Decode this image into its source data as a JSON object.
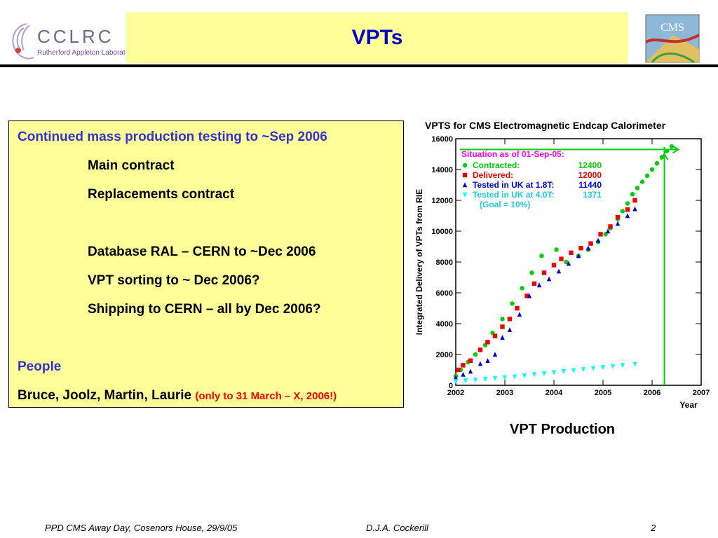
{
  "header": {
    "title": "VPTs",
    "cclrc_logo_text": "CCLRC",
    "cclrc_logo_subtext": "Rutherford Appleton Laboratory",
    "cms_logo_text": "CMS"
  },
  "textbox": {
    "lines": [
      "Continued mass production testing to ~Sep 2006",
      "Main contract",
      "Replacements contract",
      "Database  RAL – CERN to ~Dec 2006",
      "VPT sorting to ~ Dec 2006?",
      "Shipping to CERN – all by Dec 2006?",
      "People",
      "Bruce, Joolz, Martin, Laurie"
    ],
    "note": "(only to 31 March – X, 2006!)"
  },
  "caption": "VPT Production",
  "footer": {
    "left": "PPD CMS Away Day, Cosenors House, 29/9/05",
    "center": "D.J.A. Cockerill",
    "page": "2"
  },
  "chart_data": {
    "type": "scatter",
    "title": "VPTS for CMS Electromagnetic Endcap Calorimeter",
    "xlabel": "Year",
    "ylabel": "Integrated Delivery of VPTs from RIE",
    "xlim": [
      2002,
      2007
    ],
    "ylim": [
      0,
      16000
    ],
    "x_ticks": [
      "2002",
      "2003",
      "2004",
      "2005",
      "2006",
      "2007"
    ],
    "y_ticks": [
      "0",
      "2000",
      "4000",
      "6000",
      "8000",
      "10000",
      "12000",
      "14000",
      "16000"
    ],
    "legend_title": "Situation as of 01-Sep-05:",
    "legend_position": "top-left",
    "legend_goal": "(Goal =  10%)",
    "colors": {
      "contracted": "#00cc00",
      "delivered": "#ee0000",
      "tested18": "#0000cc",
      "tested40": "#00ffff",
      "title": "#ff00ff",
      "arrow": "#00cc00"
    },
    "series": [
      {
        "name": "Contracted:",
        "total": "12400",
        "marker": "circle",
        "points": [
          [
            2002.0,
            600
          ],
          [
            2002.1,
            1000
          ],
          [
            2002.25,
            1500
          ],
          [
            2002.4,
            2000
          ],
          [
            2002.6,
            2600
          ],
          [
            2002.75,
            3400
          ],
          [
            2002.95,
            4300
          ],
          [
            2003.15,
            5300
          ],
          [
            2003.35,
            6300
          ],
          [
            2003.55,
            7300
          ],
          [
            2003.75,
            8400
          ],
          [
            2004.05,
            8800
          ],
          [
            2004.25,
            8000
          ],
          [
            2004.5,
            8400
          ],
          [
            2004.7,
            8800
          ],
          [
            2004.9,
            9300
          ],
          [
            2005.05,
            9800
          ],
          [
            2005.15,
            10200
          ],
          [
            2005.3,
            10800
          ],
          [
            2005.4,
            11300
          ],
          [
            2005.5,
            11800
          ],
          [
            2005.6,
            12400
          ],
          [
            2005.7,
            12800
          ],
          [
            2005.8,
            13200
          ],
          [
            2005.9,
            13600
          ],
          [
            2006.0,
            14000
          ],
          [
            2006.1,
            14400
          ],
          [
            2006.2,
            14800
          ],
          [
            2006.3,
            15200
          ],
          [
            2006.4,
            15500
          ]
        ]
      },
      {
        "name": "Delivered:",
        "total": "12000",
        "marker": "square",
        "points": [
          [
            2002.05,
            1000
          ],
          [
            2002.15,
            1300
          ],
          [
            2002.3,
            1600
          ],
          [
            2002.5,
            2300
          ],
          [
            2002.65,
            2800
          ],
          [
            2002.8,
            3200
          ],
          [
            2002.95,
            3800
          ],
          [
            2003.1,
            4300
          ],
          [
            2003.25,
            5000
          ],
          [
            2003.45,
            5800
          ],
          [
            2003.6,
            6600
          ],
          [
            2003.8,
            7300
          ],
          [
            2004.0,
            7800
          ],
          [
            2004.15,
            8200
          ],
          [
            2004.35,
            8600
          ],
          [
            2004.55,
            8900
          ],
          [
            2004.75,
            9200
          ],
          [
            2004.95,
            9800
          ],
          [
            2005.15,
            10300
          ],
          [
            2005.3,
            10900
          ],
          [
            2005.5,
            11400
          ],
          [
            2005.65,
            12000
          ]
        ]
      },
      {
        "name": "Tested in UK at 1.8T:",
        "total": "11440",
        "marker": "triangle-up",
        "points": [
          [
            2002.0,
            500
          ],
          [
            2002.15,
            700
          ],
          [
            2002.3,
            900
          ],
          [
            2002.5,
            1400
          ],
          [
            2002.65,
            1600
          ],
          [
            2002.8,
            2000
          ],
          [
            2002.95,
            3100
          ],
          [
            2003.1,
            3600
          ],
          [
            2003.3,
            4600
          ],
          [
            2003.5,
            5800
          ],
          [
            2003.7,
            6500
          ],
          [
            2003.9,
            6900
          ],
          [
            2004.1,
            7400
          ],
          [
            2004.3,
            7900
          ],
          [
            2004.5,
            8400
          ],
          [
            2004.7,
            8900
          ],
          [
            2004.9,
            9400
          ],
          [
            2005.1,
            10000
          ],
          [
            2005.3,
            10500
          ],
          [
            2005.5,
            11000
          ],
          [
            2005.65,
            11440
          ]
        ]
      },
      {
        "name": "Tested in UK at 4.0T:",
        "total": "1371",
        "marker": "triangle-down",
        "points": [
          [
            2002.0,
            250
          ],
          [
            2002.2,
            300
          ],
          [
            2002.4,
            350
          ],
          [
            2002.6,
            400
          ],
          [
            2002.8,
            450
          ],
          [
            2003.0,
            500
          ],
          [
            2003.2,
            560
          ],
          [
            2003.4,
            620
          ],
          [
            2003.6,
            700
          ],
          [
            2003.8,
            760
          ],
          [
            2004.0,
            830
          ],
          [
            2004.2,
            900
          ],
          [
            2004.4,
            960
          ],
          [
            2004.6,
            1030
          ],
          [
            2004.8,
            1100
          ],
          [
            2005.0,
            1160
          ],
          [
            2005.2,
            1230
          ],
          [
            2005.4,
            1300
          ],
          [
            2005.65,
            1371
          ]
        ]
      }
    ]
  }
}
